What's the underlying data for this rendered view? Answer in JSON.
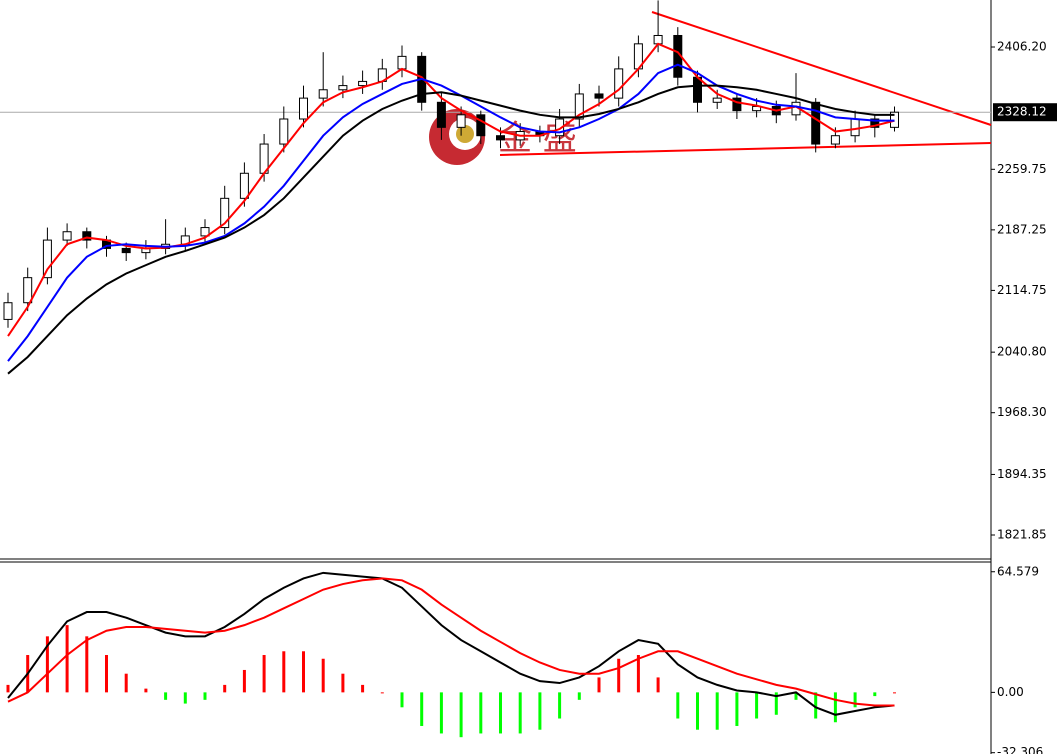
{
  "chart_data": [
    {
      "type": "candlestick",
      "open": [
        2080,
        2100,
        2130,
        2175,
        2185,
        2175,
        2165,
        2160,
        2165,
        2170,
        2180,
        2190,
        2225,
        2255,
        2290,
        2320,
        2345,
        2355,
        2360,
        2365,
        2380,
        2395,
        2340,
        2310,
        2325,
        2300,
        2295,
        2305,
        2300,
        2320,
        2350,
        2345,
        2380,
        2410,
        2420,
        2370,
        2340,
        2345,
        2330,
        2335,
        2325,
        2340,
        2290,
        2300,
        2320,
        2310
      ],
      "high": [
        2112,
        2142,
        2190,
        2195,
        2190,
        2180,
        2172,
        2175,
        2200,
        2190,
        2200,
        2240,
        2268,
        2302,
        2335,
        2360,
        2400,
        2372,
        2378,
        2392,
        2408,
        2400,
        2352,
        2335,
        2330,
        2310,
        2315,
        2312,
        2332,
        2362,
        2360,
        2395,
        2420,
        2462,
        2430,
        2378,
        2355,
        2350,
        2345,
        2342,
        2375,
        2345,
        2310,
        2330,
        2325,
        2335
      ],
      "low": [
        2070,
        2090,
        2122,
        2168,
        2165,
        2155,
        2150,
        2152,
        2158,
        2162,
        2172,
        2182,
        2215,
        2245,
        2280,
        2310,
        2335,
        2345,
        2350,
        2355,
        2370,
        2330,
        2295,
        2300,
        2290,
        2285,
        2288,
        2292,
        2290,
        2310,
        2335,
        2335,
        2370,
        2400,
        2360,
        2328,
        2332,
        2320,
        2322,
        2315,
        2318,
        2280,
        2285,
        2292,
        2298,
        2305
      ],
      "close": [
        2100,
        2130,
        2175,
        2185,
        2175,
        2165,
        2160,
        2165,
        2170,
        2180,
        2190,
        2225,
        2255,
        2290,
        2320,
        2345,
        2355,
        2360,
        2365,
        2380,
        2395,
        2340,
        2310,
        2325,
        2300,
        2295,
        2305,
        2300,
        2320,
        2350,
        2345,
        2380,
        2410,
        2420,
        2370,
        2340,
        2345,
        2330,
        2335,
        2325,
        2340,
        2290,
        2300,
        2320,
        2310,
        2328.12
      ],
      "lines": [
        {
          "color": "#ff0000",
          "values": [
            2060,
            2095,
            2140,
            2170,
            2178,
            2175,
            2168,
            2165,
            2166,
            2170,
            2178,
            2195,
            2222,
            2255,
            2285,
            2315,
            2340,
            2352,
            2358,
            2365,
            2380,
            2370,
            2345,
            2330,
            2318,
            2305,
            2300,
            2300,
            2308,
            2325,
            2338,
            2355,
            2380,
            2410,
            2400,
            2370,
            2350,
            2340,
            2336,
            2330,
            2335,
            2320,
            2305,
            2308,
            2312,
            2318
          ]
        },
        {
          "color": "#0000ff",
          "values": [
            2030,
            2060,
            2095,
            2130,
            2155,
            2168,
            2170,
            2168,
            2167,
            2168,
            2172,
            2180,
            2195,
            2215,
            2240,
            2270,
            2300,
            2322,
            2338,
            2350,
            2362,
            2368,
            2360,
            2348,
            2335,
            2322,
            2310,
            2305,
            2304,
            2310,
            2320,
            2332,
            2350,
            2375,
            2385,
            2375,
            2360,
            2350,
            2342,
            2337,
            2335,
            2330,
            2322,
            2320,
            2318,
            2318
          ]
        },
        {
          "color": "#000000",
          "values": [
            2015,
            2035,
            2060,
            2085,
            2105,
            2122,
            2135,
            2145,
            2155,
            2162,
            2170,
            2178,
            2190,
            2205,
            2225,
            2250,
            2275,
            2300,
            2318,
            2332,
            2342,
            2350,
            2352,
            2348,
            2342,
            2336,
            2330,
            2325,
            2322,
            2322,
            2326,
            2332,
            2340,
            2350,
            2358,
            2360,
            2360,
            2358,
            2355,
            2350,
            2345,
            2338,
            2332,
            2328,
            2325,
            2325
          ]
        }
      ],
      "current_price": 2328.12,
      "watermark": "金 盛",
      "ylim": [
        1794.3,
        2462.5
      ],
      "yticks": [
        {
          "value": 2406.2,
          "label": "2406.20"
        },
        2259.75,
        2187.25,
        2114.75,
        {
          "value": 2040.8,
          "label": "2040.80"
        },
        {
          "value": 1968.3,
          "label": "1968.30"
        },
        1894.35,
        1821.85
      ]
    },
    {
      "type": "macd",
      "lines": [
        {
          "color": "#000000",
          "values": [
            -3,
            10,
            25,
            38,
            43,
            43,
            40,
            36,
            32,
            30,
            30,
            35,
            42,
            50,
            56,
            61,
            64,
            63,
            62,
            61,
            56,
            46,
            36,
            28,
            22,
            16,
            10,
            6,
            5,
            8,
            14,
            22,
            28,
            26,
            15,
            8,
            4,
            1,
            0,
            -2,
            0,
            -8,
            -12,
            -10,
            -8,
            -7
          ]
        },
        {
          "color": "#ff0000",
          "values": [
            -5,
            0,
            10,
            20,
            28,
            33,
            35,
            35,
            34,
            33,
            32,
            33,
            36,
            40,
            45,
            50,
            55,
            58,
            60,
            61,
            60,
            55,
            47,
            40,
            33,
            27,
            21,
            16,
            12,
            10,
            10,
            13,
            18,
            22,
            22,
            18,
            14,
            10,
            7,
            4,
            2,
            -1,
            -4,
            -6,
            -7,
            -7
          ]
        }
      ],
      "histogram": [
        4,
        20,
        30,
        36,
        30,
        20,
        10,
        2,
        -4,
        -6,
        -4,
        4,
        12,
        20,
        22,
        22,
        18,
        10,
        4,
        0,
        -8,
        -18,
        -22,
        -24,
        -22,
        -22,
        -22,
        -20,
        -14,
        -4,
        8,
        18,
        20,
        8,
        -14,
        -20,
        -20,
        -18,
        -14,
        -12,
        -4,
        -14,
        -16,
        -8,
        -2,
        0
      ],
      "positive_color": "#ff0000",
      "negative_color": "#00ff00",
      "ylim": [
        -33,
        69.8
      ],
      "yticks": [
        64.579,
        {
          "value": 0,
          "label": "0.00"
        },
        -32.306
      ]
    }
  ]
}
